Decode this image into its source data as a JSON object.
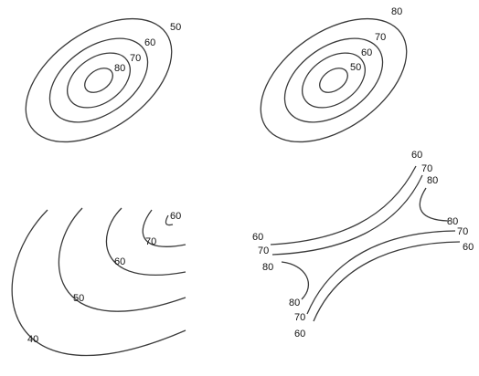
{
  "panels": {
    "top_left": {
      "labels": [
        "50",
        "60",
        "70",
        "80"
      ]
    },
    "top_right": {
      "labels": [
        "80",
        "70",
        "60",
        "50"
      ]
    },
    "bottom_left": {
      "labels": [
        "60",
        "70",
        "60",
        "50",
        "40"
      ]
    },
    "bottom_right": {
      "labels": [
        "60",
        "70",
        "80",
        "80",
        "70",
        "60",
        "60",
        "70",
        "80",
        "80",
        "70",
        "60"
      ]
    }
  }
}
